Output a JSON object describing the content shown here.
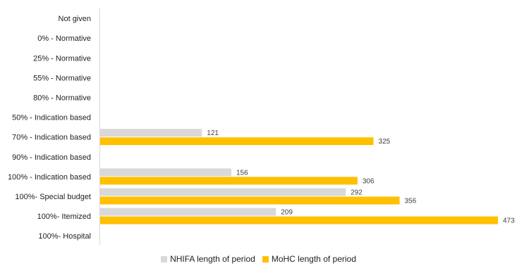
{
  "chart_data": {
    "type": "bar",
    "orientation": "horizontal",
    "categories": [
      "Not given",
      "0% - Normative",
      "25% - Normative",
      "55% - Normative",
      "80% - Normative",
      "50% - Indication based",
      "70% - Indication based",
      "90% - Indication based",
      "100% - Indication based",
      "100%- Special budget",
      "100%- Itemized",
      "100%- Hospital"
    ],
    "series": [
      {
        "name": "NHIFA length of period",
        "color": "#d9d9d9",
        "values": [
          null,
          null,
          null,
          null,
          null,
          null,
          121,
          null,
          156,
          292,
          209,
          null
        ]
      },
      {
        "name": "MoHC length of period",
        "color": "#ffc000",
        "values": [
          null,
          null,
          null,
          null,
          null,
          null,
          325,
          null,
          306,
          356,
          473,
          null
        ]
      }
    ],
    "xlim": [
      0,
      473
    ],
    "grid": false,
    "legend_position": "bottom"
  }
}
